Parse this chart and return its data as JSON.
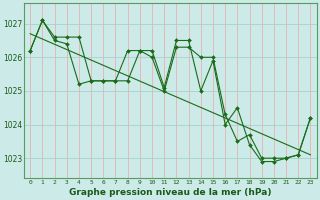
{
  "title": "Graphe pression niveau de la mer (hPa)",
  "bg_color": "#cceae8",
  "line_color": "#1a6b1a",
  "ylim": [
    1022.4,
    1027.6
  ],
  "xlim": [
    -0.5,
    23.5
  ],
  "yticks": [
    1023,
    1024,
    1025,
    1026,
    1027
  ],
  "xticks": [
    0,
    1,
    2,
    3,
    4,
    5,
    6,
    7,
    8,
    9,
    10,
    11,
    12,
    13,
    14,
    15,
    16,
    17,
    18,
    19,
    20,
    21,
    22,
    23
  ],
  "series1_x": [
    0,
    1,
    2,
    3,
    4,
    5,
    6,
    7,
    8,
    9,
    10,
    11,
    12,
    13,
    14,
    15,
    16,
    17,
    18,
    19,
    20,
    21,
    22,
    23
  ],
  "series1_y": [
    1026.2,
    1027.1,
    1026.5,
    1026.4,
    1025.2,
    1025.3,
    1025.3,
    1025.3,
    1026.2,
    1026.2,
    1026.0,
    1025.0,
    1026.3,
    1026.3,
    1026.0,
    1026.0,
    1024.3,
    1023.5,
    1023.7,
    1023.0,
    1023.0,
    1023.0,
    1023.1,
    1024.2
  ],
  "series2_x": [
    0,
    1,
    2,
    3,
    4,
    5,
    6,
    7,
    8,
    9,
    10,
    11,
    12,
    13,
    14,
    15,
    16,
    17,
    18,
    19,
    20,
    21,
    22,
    23
  ],
  "series2_y": [
    1026.2,
    1027.1,
    1026.6,
    1026.6,
    1026.6,
    1025.3,
    1025.3,
    1025.3,
    1025.3,
    1026.2,
    1026.2,
    1025.1,
    1026.5,
    1026.5,
    1025.0,
    1025.9,
    1024.0,
    1024.5,
    1023.4,
    1022.9,
    1022.9,
    1023.0,
    1023.1,
    1024.2
  ],
  "trend_x": [
    0,
    23
  ],
  "trend_y": [
    1026.7,
    1023.1
  ],
  "vgrid_color": "#e8b0b0",
  "hgrid_color": "#a8d0cc",
  "spine_color": "#5a9a5a",
  "xlabel_color": "#1a5a1a",
  "tick_color": "#1a5a1a",
  "xlabel_fontsize": 6.5,
  "xtick_fontsize": 4.5,
  "ytick_fontsize": 5.5
}
